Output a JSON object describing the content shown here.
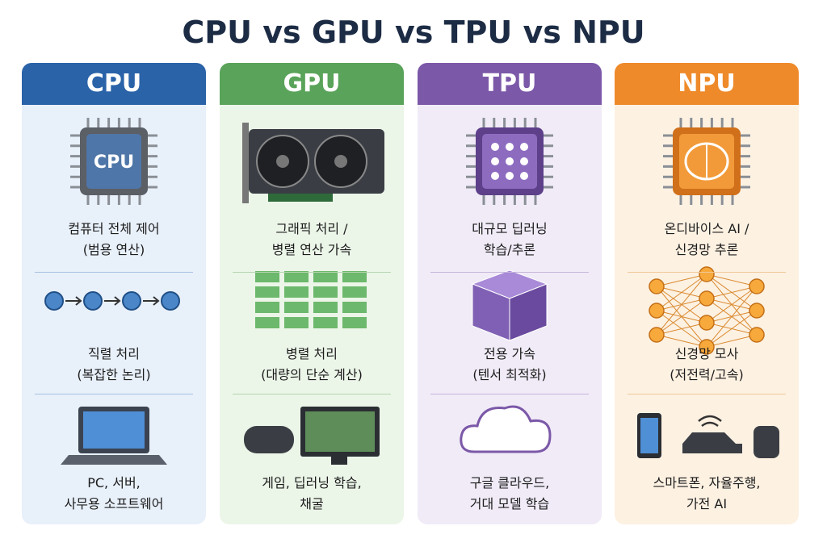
{
  "title": "CPU vs GPU vs TPU vs NPU",
  "columns": [
    {
      "name": "CPU",
      "icon_label": "CPU",
      "rows": [
        [
          "컴퓨터 전체 제어",
          "(범용 연산)"
        ],
        [
          "직렬 처리",
          "(복잡한 논리)"
        ],
        [
          "PC, 서버,",
          "사무용 소프트웨어"
        ]
      ]
    },
    {
      "name": "GPU",
      "rows": [
        [
          "그래픽 처리 /",
          "병렬 연산 가속"
        ],
        [
          "병렬 처리",
          "(대량의 단순 계산)"
        ],
        [
          "게임, 딥러닝 학습,",
          "채굴"
        ]
      ]
    },
    {
      "name": "TPU",
      "rows": [
        [
          "대규모 딥러닝",
          "학습/추론"
        ],
        [
          "전용 가속",
          "(텐서 최적화)"
        ],
        [
          "구글 클라우드,",
          "거대 모델 학습"
        ]
      ]
    },
    {
      "name": "NPU",
      "rows": [
        [
          "온디바이스 AI /",
          "신경망 추론"
        ],
        [
          "신경망 모사",
          "(저전력/고속)"
        ],
        [
          "스마트폰, 자율주행,",
          "가전 AI"
        ]
      ]
    }
  ]
}
